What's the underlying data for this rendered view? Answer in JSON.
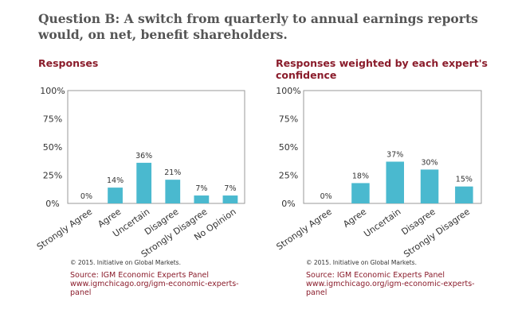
{
  "question": "Question B: A switch from quarterly to annual earnings reports would, on net, benefit shareholders.",
  "colors": {
    "bar": "#4ab9cf",
    "title": "#8a1c2b",
    "axis": "#999999"
  },
  "panels": [
    {
      "title": "Responses",
      "copyright": "© 2015. Initiative on Global Markets.",
      "source_line1": "Source: IGM Economic Experts Panel",
      "source_line2": "www.igmchicago.org/igm-economic-experts-",
      "source_line3": "panel"
    },
    {
      "title": "Responses weighted by each expert's confidence",
      "copyright": "© 2015. Initiative on Global Markets.",
      "source_line1": "Source: IGM Economic Experts Panel",
      "source_line2": "www.igmchicago.org/igm-economic-experts-",
      "source_line3": "panel"
    }
  ],
  "chart_data": [
    {
      "type": "bar",
      "title": "Responses",
      "categories": [
        "Strongly Agree",
        "Agree",
        "Uncertain",
        "Disagree",
        "Strongly Disagree",
        "No Opinion"
      ],
      "values": [
        0,
        14,
        36,
        21,
        7,
        7
      ],
      "data_labels": [
        "0%",
        "14%",
        "36%",
        "21%",
        "7%",
        "7%"
      ],
      "y_ticks": [
        "0%",
        "25%",
        "50%",
        "75%",
        "100%"
      ],
      "ylim": [
        0,
        100
      ],
      "xlabel": "",
      "ylabel": ""
    },
    {
      "type": "bar",
      "title": "Responses weighted by each expert's confidence",
      "categories": [
        "Strongly Agree",
        "Agree",
        "Uncertain",
        "Disagree",
        "Strongly Disagree"
      ],
      "values": [
        0,
        18,
        37,
        30,
        15
      ],
      "data_labels": [
        "0%",
        "18%",
        "37%",
        "30%",
        "15%"
      ],
      "y_ticks": [
        "0%",
        "25%",
        "50%",
        "75%",
        "100%"
      ],
      "ylim": [
        0,
        100
      ],
      "xlabel": "",
      "ylabel": ""
    }
  ]
}
